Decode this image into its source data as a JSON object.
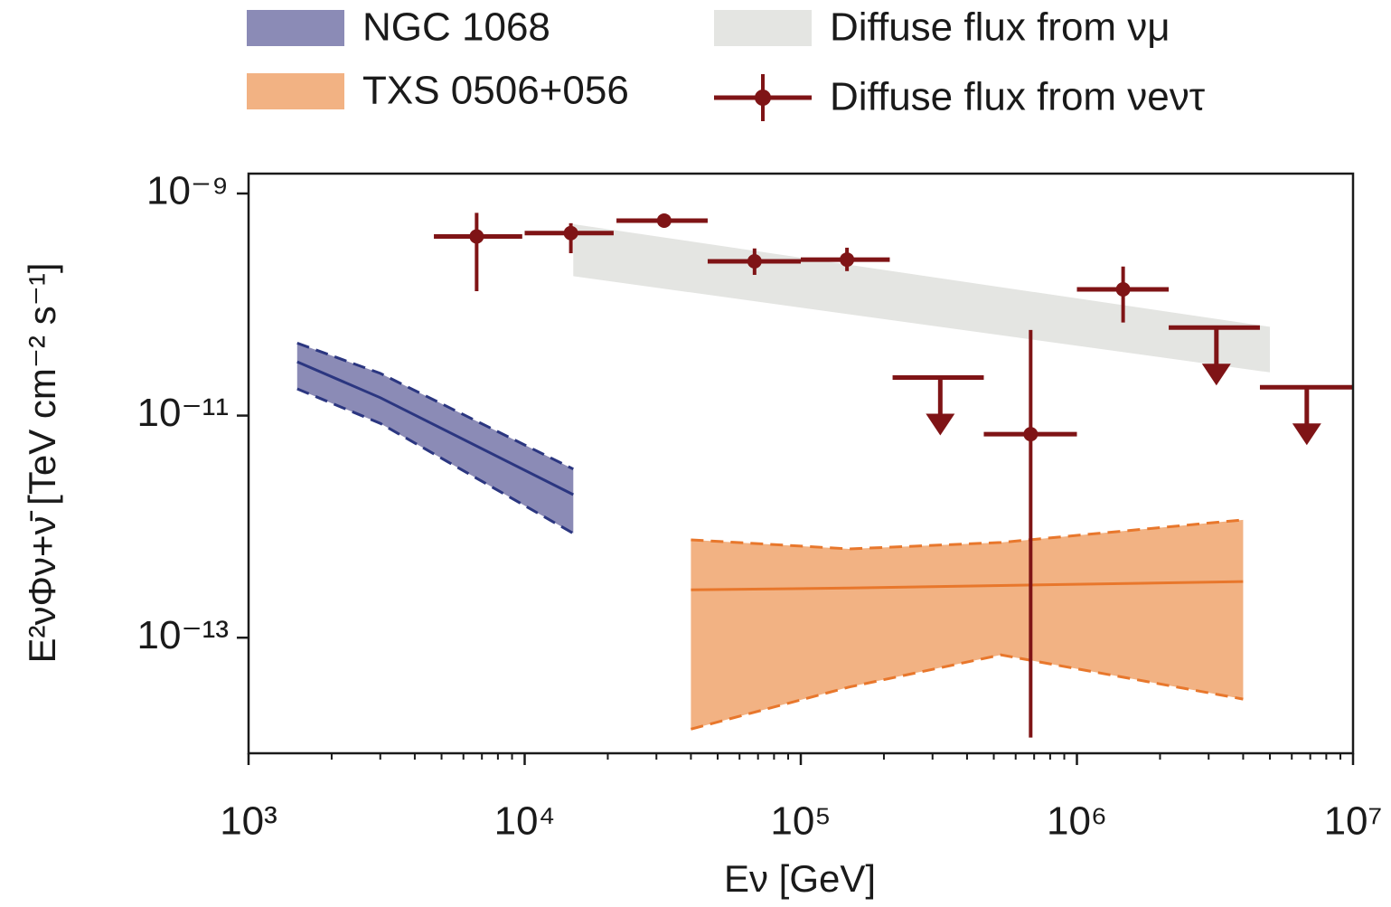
{
  "chart_data": {
    "type": "errorbar",
    "xlabel": "Eν  [GeV]",
    "ylabel": "E²νΦν+ν̄  [TeV cm⁻² s⁻¹]",
    "xscale": "log",
    "yscale": "log",
    "xlim": [
      1000,
      10000000
    ],
    "ylim": [
      9.1e-15,
      1.51e-09
    ],
    "xticks": [
      {
        "value": 1000,
        "label": "10³"
      },
      {
        "value": 10000,
        "label": "10⁴"
      },
      {
        "value": 100000,
        "label": "10⁵"
      },
      {
        "value": 1000000,
        "label": "10⁶"
      },
      {
        "value": 10000000,
        "label": "10⁷"
      }
    ],
    "xminorticks": [
      2000,
      3000,
      4000,
      5000,
      6000,
      7000,
      8000,
      9000,
      20000,
      30000,
      40000,
      50000,
      60000,
      70000,
      80000,
      90000,
      200000,
      300000,
      400000,
      500000,
      600000,
      700000,
      800000,
      900000,
      2000000,
      3000000,
      4000000,
      5000000,
      6000000,
      7000000,
      8000000,
      9000000
    ],
    "yticks": [
      {
        "value": 1e-09,
        "label": "10⁻⁹"
      },
      {
        "value": 1e-11,
        "label": "10⁻¹¹"
      },
      {
        "value": 1e-13,
        "label": "10⁻¹³"
      }
    ],
    "bands": [
      {
        "name": "NGC 1068",
        "color": "#8b8bb6",
        "edge_color": "#2b3680",
        "dashed_edges": true,
        "x": [
          1500,
          3000,
          15000
        ],
        "upper": [
          4.5e-11,
          2.4e-11,
          3.3e-12
        ],
        "lower": [
          1.74e-11,
          8.5e-12,
          8.7e-13
        ],
        "center": [
          3.05e-11,
          1.45e-11,
          1.94e-12
        ]
      },
      {
        "name": "TXS 0506+056",
        "color": "#f2b283",
        "edge_color": "#e8772c",
        "dashed_edges": true,
        "x": [
          40000,
          150000,
          530000,
          4000000
        ],
        "upper": [
          7.6e-13,
          6.3e-13,
          7.2e-13,
          1.15e-12
        ],
        "lower": [
          1.5e-14,
          3.6e-14,
          7e-14,
          2.8e-14
        ],
        "center": [
          2.7e-13,
          2.8e-13,
          2.95e-13,
          3.2e-13
        ]
      },
      {
        "name": "Diffuse flux from νμ",
        "color": "#e4e5e2",
        "dashed_edges": false,
        "x": [
          15000,
          5000000
        ],
        "upper": [
          5.3e-10,
          6.3e-11
        ],
        "lower": [
          1.8e-10,
          2.45e-11
        ]
      }
    ],
    "points": {
      "name": "Diffuse flux from νeντ",
      "color": "#7f1416",
      "x": [
        6700,
        14700,
        32000,
        68000,
        147000,
        320000,
        680000,
        1470000,
        3200000,
        6800000
      ],
      "values": [
        4.1e-10,
        4.4e-10,
        5.7e-10,
        2.45e-10,
        2.54e-10,
        2.2e-11,
        6.8e-12,
        1.37e-10,
        6.2e-11,
        1.8e-11
      ],
      "x_low": [
        4690,
        10000,
        21500,
        46000,
        100000,
        215000,
        460000,
        1000000,
        2150000,
        4600000
      ],
      "x_high": [
        9800,
        21000,
        46000,
        100000,
        210000,
        460000,
        1000000,
        2150000,
        4600000,
        10000000
      ],
      "y_low": [
        1.32e-10,
        2.9e-10,
        null,
        1.85e-10,
        2e-10,
        null,
        1.26e-14,
        6.9e-11,
        null,
        null
      ],
      "y_high": [
        6.7e-10,
        5.4e-10,
        null,
        3.2e-10,
        3.25e-10,
        null,
        5.9e-11,
        2.2e-10,
        null,
        null
      ],
      "upper_limit": [
        false,
        false,
        false,
        false,
        false,
        true,
        false,
        false,
        true,
        true
      ]
    }
  }
}
